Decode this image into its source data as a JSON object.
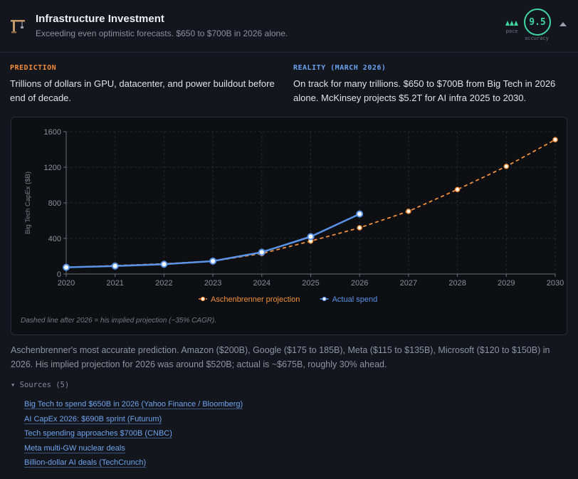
{
  "header": {
    "title": "Infrastructure Investment",
    "subtitle": "Exceeding even optimistic forecasts. $650 to $700B in 2026 alone.",
    "pace_label": "pace",
    "score": "9.5",
    "score_label": "accuracy",
    "icon": "crane-icon",
    "accent_color": "#3fd6a2"
  },
  "prediction": {
    "label": "PREDICTION",
    "text": "Trillions of dollars in GPU, datacenter, and power buildout before end of decade."
  },
  "reality": {
    "label": "REALITY (MARCH 2026)",
    "text": "On track for many trillions. $650 to $700B from Big Tech in 2026 alone. McKinsey projects $5.2T for AI infra 2025 to 2030."
  },
  "chart_data": {
    "type": "line",
    "x": [
      2020,
      2021,
      2022,
      2023,
      2024,
      2025,
      2026,
      2027,
      2028,
      2029,
      2030
    ],
    "ylabel": "Big Tech CapEx ($B)",
    "ylim": [
      0,
      1600
    ],
    "yticks": [
      0,
      400,
      800,
      1200,
      1600
    ],
    "grid": true,
    "legend_position": "bottom-center",
    "series": [
      {
        "name": "Aschenbrenner projection",
        "style": "dashed",
        "color": "#f0903c",
        "x": [
          2020,
          2021,
          2022,
          2023,
          2024,
          2025,
          2026,
          2027,
          2028,
          2029,
          2030
        ],
        "values": [
          75,
          95,
          115,
          145,
          230,
          370,
          520,
          705,
          950,
          1210,
          1510
        ]
      },
      {
        "name": "Actual spend",
        "style": "solid",
        "color": "#5b93e8",
        "x": [
          2020,
          2021,
          2022,
          2023,
          2024,
          2025,
          2026
        ],
        "values": [
          75,
          90,
          110,
          145,
          245,
          420,
          675
        ]
      }
    ],
    "note": "Dashed line after 2026 = his implied projection (~35% CAGR)."
  },
  "summary": "Aschenbrenner's most accurate prediction. Amazon ($200B), Google ($175 to 185B), Meta ($115 to $135B), Microsoft ($120 to $150B) in 2026. His implied projection for 2026 was around $520B; actual is ~$675B, roughly 30% ahead.",
  "sources": {
    "toggle_label": "Sources (5)",
    "items": [
      "Big Tech to spend $650B in 2026 (Yahoo Finance / Bloomberg)",
      "AI CapEx 2026: $690B sprint (Futurum)",
      "Tech spending approaches $700B (CNBC)",
      "Meta multi-GW nuclear deals",
      "Billion-dollar AI deals (TechCrunch)"
    ]
  }
}
